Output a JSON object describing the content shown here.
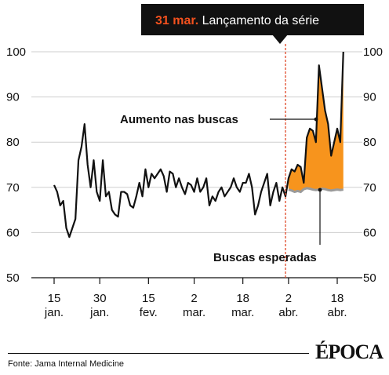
{
  "chart_data": {
    "type": "line",
    "title": "",
    "xlabel": "",
    "ylabel": "",
    "ylim": [
      50,
      100
    ],
    "grid": true,
    "y_ticks": [
      50,
      60,
      70,
      80,
      90,
      100
    ],
    "x_ticks": [
      {
        "day": 15,
        "label_top": "15",
        "label_bottom": "jan."
      },
      {
        "day": 30,
        "label_top": "30",
        "label_bottom": "jan."
      },
      {
        "day": 46,
        "label_top": "15",
        "label_bottom": "fev."
      },
      {
        "day": 61,
        "label_top": "2",
        "label_bottom": "mar."
      },
      {
        "day": 77,
        "label_top": "18",
        "label_bottom": "mar."
      },
      {
        "day": 92,
        "label_top": "2",
        "label_bottom": "abr."
      },
      {
        "day": 108,
        "label_top": "18",
        "label_bottom": "abr."
      }
    ],
    "x_range": [
      15,
      108
    ],
    "series": [
      {
        "values": [
          [
            15,
            70.5
          ],
          [
            16,
            69
          ],
          [
            17,
            66
          ],
          [
            18,
            67
          ],
          [
            19,
            61
          ],
          [
            20,
            59
          ],
          [
            21,
            61
          ],
          [
            22,
            63
          ],
          [
            23,
            76
          ],
          [
            24,
            79
          ],
          [
            25,
            84
          ],
          [
            26,
            75
          ],
          [
            27,
            70
          ],
          [
            28,
            76
          ],
          [
            29,
            69
          ],
          [
            30,
            67
          ],
          [
            31,
            76
          ],
          [
            32,
            68
          ],
          [
            33,
            69
          ],
          [
            34,
            65
          ],
          [
            35,
            64
          ],
          [
            36,
            63.5
          ],
          [
            37,
            69
          ],
          [
            38,
            69
          ],
          [
            39,
            68.5
          ],
          [
            40,
            66
          ],
          [
            41,
            65.5
          ],
          [
            42,
            68
          ],
          [
            43,
            71
          ],
          [
            44,
            68
          ],
          [
            45,
            74
          ],
          [
            46,
            70
          ],
          [
            47,
            73
          ],
          [
            48,
            72
          ],
          [
            49,
            73
          ],
          [
            50,
            74
          ],
          [
            51,
            72.5
          ],
          [
            52,
            69
          ],
          [
            53,
            73.5
          ],
          [
            54,
            73
          ],
          [
            55,
            70
          ],
          [
            56,
            72
          ],
          [
            57,
            70
          ],
          [
            58,
            68.5
          ],
          [
            59,
            71
          ],
          [
            60,
            70.5
          ],
          [
            61,
            69
          ],
          [
            62,
            72
          ],
          [
            63,
            69
          ],
          [
            64,
            70
          ],
          [
            65,
            72
          ],
          [
            66,
            66
          ],
          [
            67,
            68
          ],
          [
            68,
            67
          ],
          [
            69,
            69
          ],
          [
            70,
            70
          ],
          [
            71,
            68
          ],
          [
            72,
            69
          ],
          [
            73,
            70
          ],
          [
            74,
            72
          ],
          [
            75,
            70
          ],
          [
            76,
            69
          ],
          [
            77,
            71
          ],
          [
            78,
            71
          ],
          [
            79,
            73
          ],
          [
            80,
            70
          ],
          [
            81,
            64
          ],
          [
            82,
            66
          ],
          [
            83,
            69
          ],
          [
            84,
            71
          ],
          [
            85,
            73
          ],
          [
            86,
            66
          ],
          [
            87,
            69
          ],
          [
            88,
            71
          ],
          [
            89,
            67
          ],
          [
            90,
            70
          ],
          [
            91,
            68
          ],
          [
            92,
            72
          ],
          [
            93,
            74
          ],
          [
            94,
            73.5
          ],
          [
            95,
            75
          ],
          [
            96,
            74.5
          ],
          [
            97,
            71
          ],
          [
            98,
            81
          ],
          [
            99,
            83
          ],
          [
            100,
            82.5
          ],
          [
            101,
            80
          ],
          [
            102,
            97
          ],
          [
            103,
            92
          ],
          [
            104,
            87
          ],
          [
            105,
            84
          ],
          [
            106,
            77
          ],
          [
            107,
            80
          ],
          [
            108,
            83
          ],
          [
            109,
            80
          ],
          [
            110,
            100
          ]
        ]
      },
      {
        "values": [
          [
            92,
            69.5
          ],
          [
            93,
            69.3
          ],
          [
            94,
            69
          ],
          [
            95,
            69.2
          ],
          [
            96,
            69
          ],
          [
            97,
            69.6
          ],
          [
            98,
            69.8
          ],
          [
            99,
            69.7
          ],
          [
            100,
            69.5
          ],
          [
            101,
            69.4
          ],
          [
            102,
            69.5
          ],
          [
            103,
            69.7
          ],
          [
            104,
            69.6
          ],
          [
            105,
            69.4
          ],
          [
            106,
            69.3
          ],
          [
            107,
            69.4
          ],
          [
            108,
            69.5
          ],
          [
            109,
            69.4
          ],
          [
            110,
            69.5
          ]
        ]
      }
    ],
    "vline_day": 91,
    "banner": {
      "date": "31 mar.",
      "text": " Lançamento da série"
    },
    "annotations": [
      {
        "text": "Aumento nas buscas"
      },
      {
        "text": "Buscas esperadas"
      }
    ]
  },
  "footer": {
    "source": "Fonte: Jama Internal Medicine",
    "logo": "ÉPOCA"
  },
  "colors": {
    "line": "#111111",
    "fill": "#f7941d",
    "expected": "#9a9a9a",
    "vline": "#e04a2a",
    "banner_bg": "#111111",
    "banner_date": "#f4511e",
    "grid": "#cfcfcf"
  }
}
